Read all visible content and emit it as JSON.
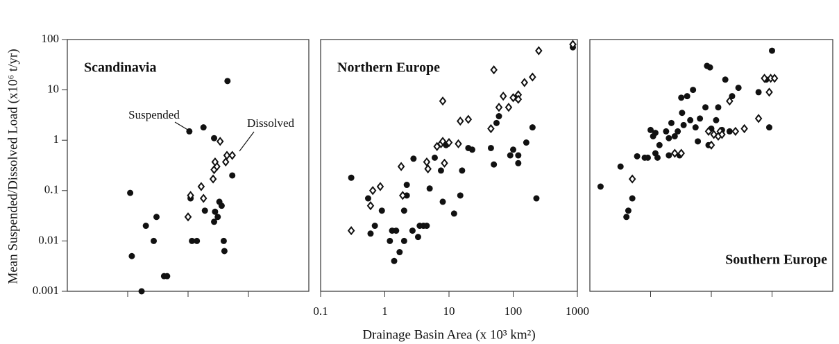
{
  "chart_data": [
    {
      "type": "scatter",
      "title": "Scandinavia",
      "title_corner": "upper left",
      "y_label": "Mean Suspended/Dissolved Load (x10⁶ t/yr)",
      "log_x": true,
      "log_y": true,
      "xlim": [
        0.1,
        1000
      ],
      "ylim": [
        0.001,
        100
      ],
      "xticks": [
        1,
        10,
        100
      ],
      "x_tick_labels": false,
      "yticks": [
        0.001,
        0.01,
        0.1,
        1,
        10,
        100
      ],
      "annotations": [
        {
          "text": "Suspended"
        },
        {
          "text": "Dissolved"
        }
      ],
      "series": [
        {
          "marker": "filled",
          "color": "#111111",
          "x": [
            1.1,
            1.17,
            1.7,
            2,
            2.7,
            3,
            4,
            4.5,
            10.5,
            11.6,
            14,
            11,
            18,
            19,
            27,
            27,
            28,
            31,
            33,
            36,
            39,
            40,
            45,
            54
          ],
          "values": [
            0.09,
            0.005,
            0.001,
            0.02,
            0.01,
            0.03,
            0.002,
            0.002,
            1.5,
            0.01,
            0.01,
            0.07,
            1.8,
            0.04,
            1.1,
            0.024,
            0.038,
            0.03,
            0.06,
            0.05,
            0.01,
            0.0063,
            15,
            0.2
          ]
        },
        {
          "marker": "open",
          "color": "#111111",
          "x": [
            11,
            10,
            16.5,
            18,
            26,
            27,
            30,
            28,
            34,
            42,
            44,
            54
          ],
          "values": [
            0.08,
            0.03,
            0.12,
            0.07,
            0.17,
            0.26,
            0.3,
            0.37,
            0.95,
            0.37,
            0.5,
            0.5
          ]
        }
      ]
    },
    {
      "type": "scatter",
      "title": "Northern Europe",
      "title_corner": "upper left",
      "x_label": "Drainage Basin Area (x 10³ km²)",
      "log_x": true,
      "log_y": true,
      "xlim": [
        0.1,
        1000
      ],
      "ylim": [
        0.001,
        100
      ],
      "xticks": [
        0.1,
        1,
        10,
        100,
        1000
      ],
      "x_tick_labels": true,
      "series": [
        {
          "marker": "filled",
          "color": "#111111",
          "x": [
            0.3,
            0.55,
            0.6,
            0.7,
            0.9,
            1.2,
            1.3,
            1.4,
            1.5,
            1.7,
            2,
            2,
            2.2,
            2.2,
            2.7,
            2.8,
            3.5,
            3.3,
            4,
            4.5,
            5,
            6,
            7.5,
            8,
            9,
            12,
            15,
            16,
            20,
            23,
            45,
            50,
            55,
            60,
            90,
            100,
            110,
            120,
            120,
            160,
            200,
            230,
            850
          ],
          "values": [
            0.18,
            0.07,
            0.014,
            0.02,
            0.04,
            0.01,
            0.016,
            0.004,
            0.016,
            0.006,
            0.01,
            0.04,
            0.13,
            0.08,
            0.016,
            0.43,
            0.02,
            0.012,
            0.02,
            0.02,
            0.11,
            0.45,
            0.25,
            0.06,
            0.8,
            0.035,
            0.08,
            0.25,
            0.7,
            0.65,
            0.7,
            0.33,
            2.2,
            3,
            0.5,
            0.65,
            7,
            0.35,
            0.5,
            0.9,
            1.8,
            0.07,
            70
          ]
        },
        {
          "marker": "open",
          "color": "#111111",
          "x": [
            0.3,
            0.6,
            0.65,
            0.85,
            1.8,
            1.9,
            4.5,
            4.7,
            6.5,
            7.5,
            8,
            8,
            8.5,
            10,
            14,
            15,
            20,
            45,
            50,
            60,
            70,
            85,
            100,
            120,
            120,
            150,
            200,
            250,
            850
          ],
          "values": [
            0.016,
            0.05,
            0.1,
            0.12,
            0.3,
            0.08,
            0.37,
            0.27,
            0.75,
            0.85,
            6,
            0.95,
            0.35,
            0.9,
            0.85,
            2.4,
            2.6,
            1.7,
            25,
            4.5,
            7.5,
            4.5,
            7,
            8,
            6.5,
            14,
            18,
            60,
            80
          ]
        }
      ]
    },
    {
      "type": "scatter",
      "title": "Southern Europe",
      "title_corner": "lower right",
      "log_x": true,
      "log_y": true,
      "xlim": [
        0.1,
        1000
      ],
      "ylim": [
        0.001,
        100
      ],
      "xticks": [
        1,
        10,
        100
      ],
      "x_tick_labels": false,
      "series": [
        {
          "marker": "filled",
          "color": "#111111",
          "x": [
            0.15,
            0.32,
            0.4,
            0.43,
            0.5,
            0.6,
            0.8,
            0.9,
            1,
            1.1,
            1.2,
            1.2,
            1.3,
            1.4,
            1.8,
            2,
            2,
            2.2,
            2.5,
            2.8,
            3,
            3.2,
            3.3,
            3.5,
            4,
            4.5,
            5,
            5.5,
            6,
            6.5,
            8,
            8.5,
            9.5,
            9,
            10,
            12,
            13,
            15,
            17,
            20,
            22,
            28,
            60,
            80,
            90,
            100
          ],
          "values": [
            0.12,
            0.3,
            0.03,
            0.04,
            0.07,
            0.48,
            0.45,
            0.45,
            1.6,
            1.2,
            0.55,
            1.4,
            0.45,
            0.8,
            1.5,
            0.5,
            1.1,
            2.2,
            1.2,
            1.5,
            0.5,
            7,
            3.5,
            2,
            7.5,
            2.5,
            10,
            1.8,
            0.95,
            2.7,
            4.5,
            30,
            28,
            0.8,
            1.7,
            2.5,
            4.5,
            1.6,
            16,
            1.5,
            7.5,
            11,
            9,
            16,
            1.8,
            60
          ]
        },
        {
          "marker": "open",
          "color": "#111111",
          "x": [
            0.5,
            2.5,
            3.2,
            9,
            10,
            11,
            13,
            14,
            15,
            20,
            25,
            35,
            60,
            75,
            90,
            95,
            110
          ],
          "values": [
            0.17,
            0.55,
            0.55,
            1.5,
            0.8,
            1.3,
            1.2,
            1.5,
            1.3,
            6,
            1.5,
            1.7,
            2.7,
            17,
            9,
            17,
            17
          ]
        }
      ]
    }
  ]
}
